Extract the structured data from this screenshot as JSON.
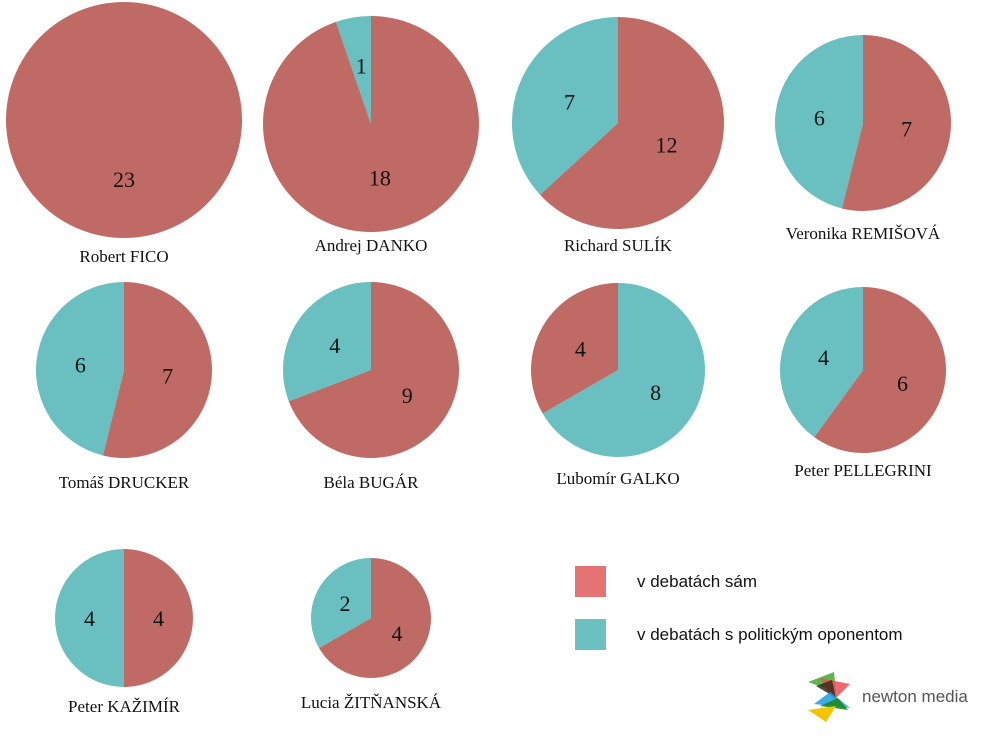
{
  "chart_data": {
    "type": "pie",
    "series_names": [
      "v debatách sám",
      "v debatách s politickým oponentom"
    ],
    "colors": {
      "alone": "#c06a66",
      "opponent": "#6abfc0",
      "legend_alone": "#e57373",
      "legend_opponent": "#6cc0c0"
    },
    "pies": [
      {
        "name": "Robert FICO",
        "alone": 23,
        "opponent": 0
      },
      {
        "name": "Andrej DANKO",
        "alone": 18,
        "opponent": 1
      },
      {
        "name": "Richard SULÍK",
        "alone": 12,
        "opponent": 7
      },
      {
        "name": "Veronika REMIŠOVÁ",
        "alone": 7,
        "opponent": 6
      },
      {
        "name": "Tomáš DRUCKER",
        "alone": 7,
        "opponent": 6
      },
      {
        "name": "Béla BUGÁR",
        "alone": 9,
        "opponent": 4
      },
      {
        "name": "Ľubomír GALKO",
        "alone": 4,
        "opponent": 8
      },
      {
        "name": "Peter PELLEGRINI",
        "alone": 6,
        "opponent": 4
      },
      {
        "name": "Peter KAŽIMÍR",
        "alone": 4,
        "opponent": 4
      },
      {
        "name": "Lucia ŽITŇANSKÁ",
        "alone": 4,
        "opponent": 2
      }
    ]
  },
  "legend": {
    "alone": "v debatách sám",
    "opponent": "v debatách s politickým oponentom"
  },
  "logo": {
    "text": "newton media"
  }
}
